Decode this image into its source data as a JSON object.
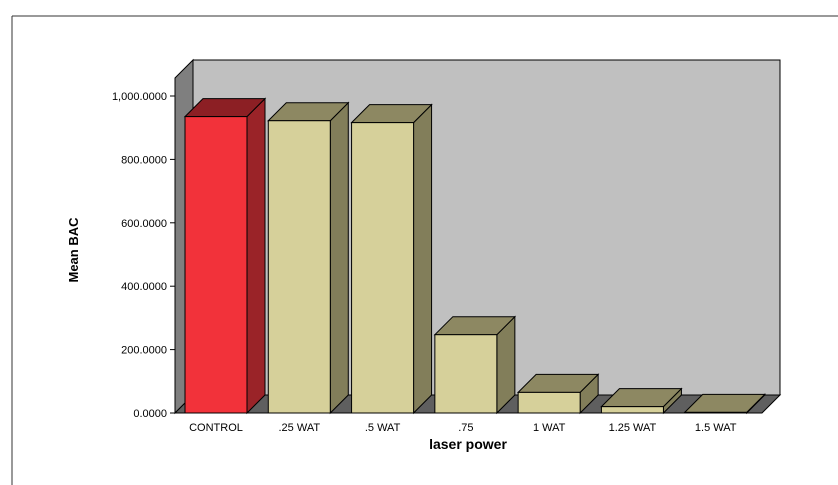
{
  "chart_data": {
    "type": "bar",
    "xlabel": "laser power",
    "ylabel": "Mean BAC",
    "categories": [
      "CONTROL",
      ".25 WAT",
      ".5 WAT",
      ".75",
      "1 WAT",
      "1.25 WAT",
      "1.5 WAT"
    ],
    "values": [
      935,
      922,
      916,
      247,
      65,
      20,
      2
    ],
    "ylim": [
      0,
      1000
    ],
    "yticks": [
      0,
      200,
      400,
      600,
      800,
      1000
    ],
    "ytick_labels": [
      "0.0000",
      "200.0000",
      "400.0000",
      "600.0000",
      "800.0000",
      "1,000.0000"
    ],
    "grid": false,
    "style": "3d",
    "colors": {
      "highlight_bar": "#f2323a",
      "highlight_bar_side": "#9a2328",
      "highlight_bar_top": "#8c1f24",
      "bar": "#d6d09a",
      "bar_side": "#827e5a",
      "bar_top": "#8d8862",
      "back_wall": "#c0c0c0",
      "side_wall": "#7f7f7f",
      "floor": "#5f5f5f",
      "outline": "#000000"
    }
  }
}
